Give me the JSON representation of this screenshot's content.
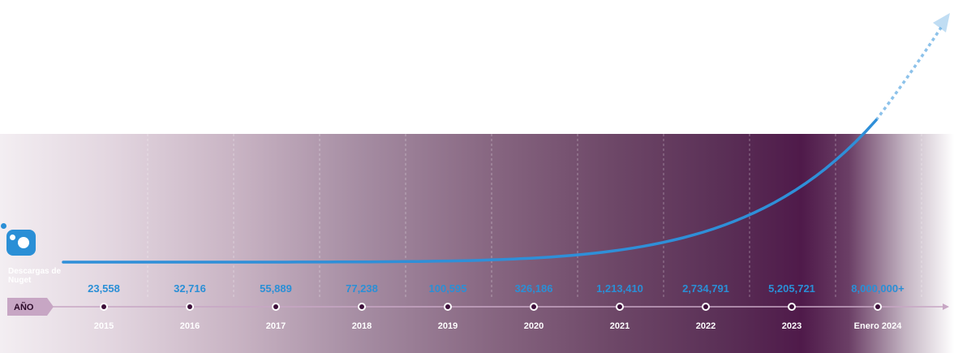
{
  "chart_data": {
    "type": "line",
    "title": "",
    "series_name": "Descargas de Nuget",
    "xlabel": "AÑO",
    "ylabel": "",
    "categories": [
      "2015",
      "2016",
      "2017",
      "2018",
      "2019",
      "2020",
      "2021",
      "2022",
      "2023",
      "Enero 2024"
    ],
    "values": [
      23558,
      32716,
      55889,
      77238,
      100595,
      326186,
      1213410,
      2734791,
      5205721,
      8000000
    ],
    "value_labels": [
      "23,558",
      "32,716",
      "55,889",
      "77,238",
      "100,595",
      "326,186",
      "1,213,410",
      "2,734,791",
      "5,205,721",
      "8,000,000+"
    ],
    "trend": "continues upward beyond the last point (dashed arrow)",
    "grid": "vertical dashed lines",
    "colors": {
      "line": "#2f8fd8",
      "value_labels": "#2a8fd6",
      "axis": "#c7a6c4",
      "year_labels": "#ffffff",
      "marker_fill": "#ffffff",
      "marker_center": "#3d0f3a",
      "axis_tag": "#c7a6c4"
    }
  }
}
